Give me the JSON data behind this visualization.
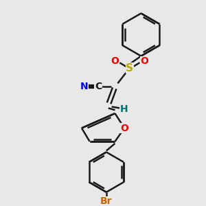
{
  "background_color": "#e8e8e8",
  "bond_color": "#1a1a1a",
  "atom_colors": {
    "N": "#0000ee",
    "O": "#ee0000",
    "S": "#bbaa00",
    "Br": "#cc6600",
    "H": "#007070"
  },
  "figsize": [
    3.0,
    3.0
  ],
  "dpi": 100
}
